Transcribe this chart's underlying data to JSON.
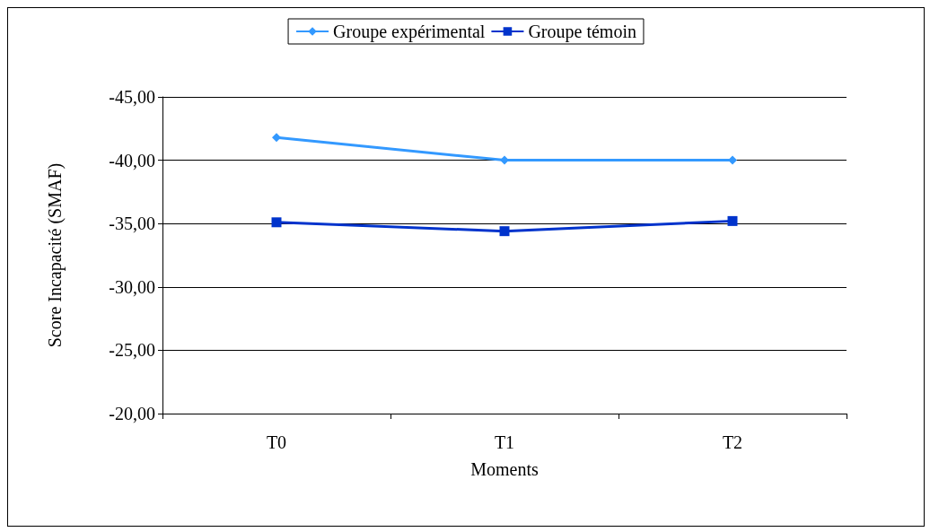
{
  "chart_data": {
    "type": "line",
    "xlabel": "Moments",
    "ylabel": "Score Incapacité (SMAF)",
    "categories": [
      "T0",
      "T1",
      "T2"
    ],
    "series": [
      {
        "name": "Groupe expérimental",
        "color": "#3399ff",
        "marker": "diamond",
        "values": [
          -41.8,
          -40.0,
          -40.0
        ]
      },
      {
        "name": "Groupe témoin",
        "color": "#0033cc",
        "marker": "square",
        "values": [
          -35.1,
          -34.4,
          -35.2
        ]
      }
    ],
    "ylim": [
      -20,
      -45
    ],
    "yticks": [
      {
        "value": -45,
        "label": "-45,00"
      },
      {
        "value": -40,
        "label": "-40,00"
      },
      {
        "value": -35,
        "label": "-35,00"
      },
      {
        "value": -30,
        "label": "-30,00"
      },
      {
        "value": -25,
        "label": "-25,00"
      },
      {
        "value": -20,
        "label": "-20,00"
      }
    ],
    "grid": "y",
    "legend": "top"
  }
}
